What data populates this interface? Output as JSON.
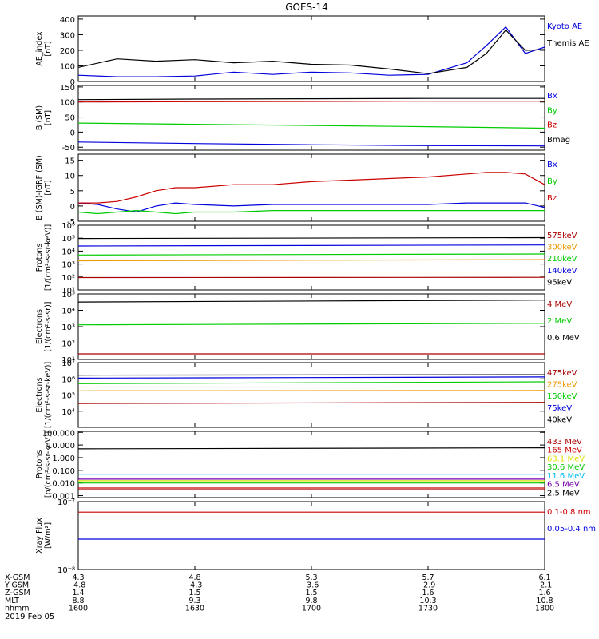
{
  "title": "GOES-14",
  "date_label": "2019 Feb 05",
  "orbit": {
    "row_labels": [
      "X-GSM",
      "Y-GSM",
      "Z-GSM",
      "MLT",
      "hhmm"
    ],
    "columns": [
      [
        "4.3",
        "-4.8",
        "1.4",
        "8.8",
        "1600"
      ],
      [
        "4.8",
        "-4.3",
        "1.5",
        "9.3",
        "1630"
      ],
      [
        "5.3",
        "-3.6",
        "1.5",
        "9.8",
        "1700"
      ],
      [
        "5.7",
        "-2.9",
        "1.6",
        "10.3",
        "1730"
      ],
      [
        "6.1",
        "-2.1",
        "1.6",
        "10.8",
        "1800"
      ]
    ]
  },
  "chart_data": [
    {
      "id": "ae",
      "type": "line",
      "ylabel": "AE_index\n[nT]",
      "scale": "linear",
      "ylim": [
        0,
        420
      ],
      "yticks": [
        0,
        100,
        200,
        300,
        400
      ],
      "ytick_labels": [
        "0",
        "100",
        "200",
        "300",
        "400"
      ],
      "x": [
        0,
        10,
        20,
        30,
        40,
        50,
        60,
        70,
        80,
        90,
        100,
        105,
        110,
        115,
        120
      ],
      "series": [
        {
          "name": "Kyoto AE",
          "color": "#0000dd",
          "values": [
            40,
            30,
            30,
            35,
            60,
            45,
            60,
            55,
            40,
            45,
            120,
            230,
            350,
            180,
            220
          ]
        },
        {
          "name": "Themis AE",
          "color": "#000000",
          "values": [
            90,
            145,
            130,
            140,
            120,
            130,
            110,
            105,
            80,
            50,
            90,
            180,
            330,
            200,
            205
          ]
        }
      ]
    },
    {
      "id": "b",
      "type": "line",
      "ylabel": "B (SM)\n[nT]",
      "scale": "linear",
      "ylim": [
        -60,
        155
      ],
      "yticks": [
        -50,
        0,
        50,
        100,
        150
      ],
      "ytick_labels": [
        "-50",
        "0",
        "50",
        "100",
        "150"
      ],
      "x": [
        0,
        30,
        60,
        90,
        120
      ],
      "series": [
        {
          "name": "Bx",
          "color": "#0000dd",
          "values": [
            -33,
            -38,
            -42,
            -45,
            -46
          ]
        },
        {
          "name": "By",
          "color": "#00cc00",
          "values": [
            30,
            26,
            22,
            18,
            13
          ]
        },
        {
          "name": "Bz",
          "color": "#cc0000",
          "values": [
            100,
            101,
            102,
            103,
            103
          ]
        },
        {
          "name": "Bmag",
          "color": "#000000",
          "values": [
            108,
            110,
            111,
            112,
            112
          ]
        }
      ]
    },
    {
      "id": "dbm",
      "type": "line",
      "ylabel": "B (SM)-IGRF (SM)\n[nT]",
      "scale": "linear",
      "ylim": [
        -5,
        17
      ],
      "yticks": [
        -5,
        0,
        5,
        10,
        15
      ],
      "ytick_labels": [
        "-5",
        "0",
        "5",
        "10",
        "15"
      ],
      "x": [
        0,
        5,
        10,
        15,
        20,
        25,
        30,
        40,
        50,
        60,
        70,
        80,
        90,
        100,
        105,
        110,
        115,
        120
      ],
      "series": [
        {
          "name": "Bx",
          "color": "#0000dd",
          "values": [
            1,
            0.5,
            -1,
            -2,
            0,
            1,
            0.5,
            0,
            0.5,
            0.5,
            0.5,
            0.5,
            0.5,
            1,
            1,
            1,
            1,
            -0.5
          ]
        },
        {
          "name": "By",
          "color": "#00cc00",
          "values": [
            -2,
            -2.5,
            -2,
            -1.5,
            -2,
            -2.5,
            -2,
            -2,
            -1.5,
            -1.5,
            -1.5,
            -1.5,
            -1.5,
            -1.5,
            -1.5,
            -1.5,
            -1.5,
            -1.5
          ]
        },
        {
          "name": "Bz",
          "color": "#cc0000",
          "values": [
            1,
            1,
            1.5,
            3,
            5,
            6,
            6,
            7,
            7,
            8,
            8.5,
            9,
            9.5,
            10.5,
            11,
            11,
            10.5,
            7
          ]
        }
      ]
    },
    {
      "id": "protons_low",
      "type": "line",
      "ylabel": "Protons\n[1/(cm²-s-sr-keV)]",
      "scale": "log",
      "ylim": [
        10,
        1000000
      ],
      "yticks": [
        10,
        100,
        1000,
        10000,
        100000,
        1000000
      ],
      "ytick_labels": [
        "10¹",
        "10²",
        "10³",
        "10⁴",
        "10⁵",
        "10⁶"
      ],
      "x": [
        0,
        120
      ],
      "series": [
        {
          "name": "575keV",
          "color": "#aa0000",
          "values": [
            90,
            95
          ]
        },
        {
          "name": "300keV",
          "color": "#ee9900",
          "values": [
            1800,
            2200
          ]
        },
        {
          "name": "210keV",
          "color": "#00cc00",
          "values": [
            5000,
            6000
          ]
        },
        {
          "name": "140keV",
          "color": "#0000dd",
          "values": [
            25000,
            30000
          ]
        },
        {
          "name": "95keV",
          "color": "#000000",
          "values": [
            95000,
            110000
          ]
        }
      ]
    },
    {
      "id": "electrons_high",
      "type": "line",
      "ylabel": "Electrons\n[1/(cm²-s-sr)]",
      "scale": "log",
      "ylim": [
        10,
        100000
      ],
      "yticks": [
        10,
        100,
        1000,
        10000,
        100000
      ],
      "ytick_labels": [
        "10¹",
        "10²",
        "10³",
        "10⁴",
        "10⁵"
      ],
      "x": [
        0,
        120
      ],
      "series": [
        {
          "name": "4 MeV",
          "color": "#aa0000",
          "values": [
            22,
            22
          ]
        },
        {
          "name": "2 MeV",
          "color": "#00cc00",
          "values": [
            1300,
            1600
          ]
        },
        {
          "name": "0.6 MeV",
          "color": "#000000",
          "values": [
            32000,
            42000
          ]
        }
      ]
    },
    {
      "id": "electrons_low",
      "type": "line",
      "ylabel": "Electrons\n[1/(cm²-s-sr-keV)]",
      "scale": "log",
      "ylim": [
        1000,
        10000000
      ],
      "yticks": [
        10000,
        100000,
        1000000,
        10000000
      ],
      "ytick_labels": [
        "10⁴",
        "10⁵",
        "10⁶",
        "10⁷"
      ],
      "x": [
        0,
        120
      ],
      "series": [
        {
          "name": "475keV",
          "color": "#aa0000",
          "values": [
            30000,
            35000
          ]
        },
        {
          "name": "275keV",
          "color": "#ee9900",
          "values": [
            180000,
            190000
          ]
        },
        {
          "name": "150keV",
          "color": "#00cc00",
          "values": [
            500000,
            650000
          ]
        },
        {
          "name": "75keV",
          "color": "#0000dd",
          "values": [
            1100000,
            1300000
          ]
        },
        {
          "name": "40keV",
          "color": "#000000",
          "values": [
            1700000,
            1800000
          ]
        }
      ]
    },
    {
      "id": "protons_high",
      "type": "line",
      "ylabel": "Protons\n[p/(cm²-s-sr-keV)]",
      "scale": "log",
      "ylim": [
        0.0007,
        120
      ],
      "yticks": [
        0.001,
        0.01,
        0.1,
        1,
        10,
        100
      ],
      "ytick_labels": [
        "0.001",
        "0.010",
        "0.100",
        "1.000",
        "10.000",
        "100.000"
      ],
      "x": [
        0,
        120
      ],
      "series": [
        {
          "name": "433 MeV",
          "color": "#aa0000",
          "values": [
            0.003,
            0.003
          ]
        },
        {
          "name": "165 MeV",
          "color": "#cc0000",
          "values": [
            0.004,
            0.004
          ]
        },
        {
          "name": "63.1 MeV",
          "color": "#dddd00",
          "values": [
            0.015,
            0.015
          ]
        },
        {
          "name": "30.6 MeV",
          "color": "#00cc00",
          "values": [
            0.01,
            0.01
          ]
        },
        {
          "name": "11.6 MeV",
          "color": "#00bbee",
          "values": [
            0.05,
            0.05
          ]
        },
        {
          "name": "6.5 MeV",
          "color": "#7700aa",
          "values": [
            0.02,
            0.02
          ]
        },
        {
          "name": "2.5 MeV",
          "color": "#000000",
          "values": [
            5,
            6
          ]
        }
      ]
    },
    {
      "id": "xray",
      "type": "line",
      "ylabel": "Xray Flux\n[W/m²]",
      "scale": "log",
      "ylim": [
        1e-08,
        1e-07
      ],
      "yticks": [
        1e-08,
        1e-07
      ],
      "ytick_labels": [
        "10⁻⁸",
        "10⁻⁷"
      ],
      "x": [
        0,
        120
      ],
      "series": [
        {
          "name": "0.1-0.8 nm",
          "color": "#cc0000",
          "values": [
            7e-08,
            7e-08
          ]
        },
        {
          "name": "0.05-0.4 nm",
          "color": "#0000dd",
          "values": [
            2.8e-08,
            2.8e-08
          ]
        }
      ]
    }
  ],
  "colors": {
    "axis": "#000000",
    "background": "#ffffff"
  }
}
